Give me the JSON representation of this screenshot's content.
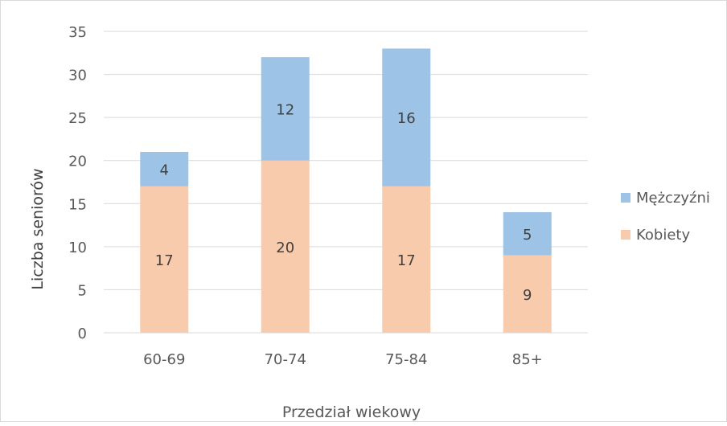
{
  "chart_data": {
    "type": "bar",
    "stacked": true,
    "title": "",
    "xlabel": "Przedział wiekowy",
    "ylabel": "Liczba seniorów",
    "categories": [
      "60-69",
      "70-74",
      "75-84",
      "85+"
    ],
    "series": [
      {
        "name": "Kobiety",
        "values": [
          17,
          20,
          17,
          9
        ],
        "color": "#f8cbad"
      },
      {
        "name": "Mężczyźni",
        "values": [
          4,
          12,
          16,
          5
        ],
        "color": "#9dc3e6"
      }
    ],
    "ylim": [
      0,
      35
    ],
    "yticks": [
      0,
      5,
      10,
      15,
      20,
      25,
      30,
      35
    ],
    "grid": true,
    "data_labels": true,
    "legend": {
      "position": "right",
      "order": [
        "Mężczyźni",
        "Kobiety"
      ]
    }
  }
}
